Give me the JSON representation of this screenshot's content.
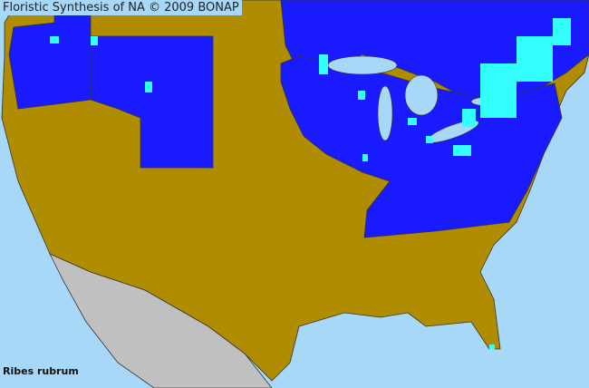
{
  "header": {
    "title": "Floristic Synthesis of NA © 2009 BONAP"
  },
  "map": {
    "species": "Ribes rubrum",
    "colors": {
      "water": "#a8d8f8",
      "native_present": "#1a1aff",
      "native_county": "#33ffff",
      "absent": "#b08c00",
      "outside_region": "#c0c0c0",
      "borders": "#333333"
    }
  }
}
